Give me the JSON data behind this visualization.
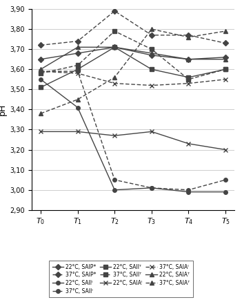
{
  "x_vals": [
    0,
    1,
    2,
    3,
    4,
    5
  ],
  "ylim": [
    2.9,
    3.9
  ],
  "yticks": [
    2.9,
    3.0,
    3.1,
    3.2,
    3.3,
    3.4,
    3.5,
    3.6,
    3.7,
    3.8,
    3.9
  ],
  "ylabel": "pH",
  "series": [
    {
      "label": "22°C, SAIP*",
      "values": [
        3.65,
        3.68,
        3.71,
        3.67,
        3.65,
        3.66
      ],
      "linestyle": "solid",
      "marker": "D",
      "markersize": 4
    },
    {
      "label": "37°C, SAIP*",
      "values": [
        3.72,
        3.74,
        3.89,
        3.77,
        3.77,
        3.73
      ],
      "linestyle": "dashed",
      "marker": "D",
      "markersize": 4
    },
    {
      "label": "22°C, SAIIᵀ",
      "values": [
        3.51,
        3.6,
        3.71,
        3.6,
        3.56,
        3.6
      ],
      "linestyle": "solid",
      "marker": "s",
      "markersize": 4
    },
    {
      "label": "37°C, SAIIᵀ",
      "values": [
        3.58,
        3.62,
        3.79,
        3.7,
        3.55,
        3.6
      ],
      "linestyle": "dashed",
      "marker": "s",
      "markersize": 4
    },
    {
      "label": "22°C, SAIAᵀ",
      "values": [
        3.6,
        3.71,
        3.71,
        3.68,
        3.65,
        3.65
      ],
      "linestyle": "solid",
      "marker": "^",
      "markersize": 4
    },
    {
      "label": "37°C, SAIAᵀ",
      "values": [
        3.38,
        3.45,
        3.56,
        3.8,
        3.76,
        3.79
      ],
      "linestyle": "dashed",
      "marker": "^",
      "markersize": 4
    },
    {
      "label": "22°C, SAIIᴵ",
      "values": [
        3.55,
        3.41,
        3.0,
        3.01,
        2.99,
        2.99
      ],
      "linestyle": "solid",
      "marker": "o",
      "markersize": 4
    },
    {
      "label": "37°C, SAIIᴵ",
      "values": [
        3.59,
        3.59,
        3.05,
        3.01,
        3.0,
        3.05
      ],
      "linestyle": "dashed",
      "marker": "o",
      "markersize": 4
    },
    {
      "label": "22°C, SAIAᴵ",
      "values": [
        3.29,
        3.29,
        3.27,
        3.29,
        3.23,
        3.2
      ],
      "linestyle": "solid",
      "marker": "x",
      "markersize": 5
    },
    {
      "label": "37°C, SAIAᴵ",
      "values": [
        3.59,
        3.58,
        3.53,
        3.52,
        3.53,
        3.55
      ],
      "linestyle": "dashed",
      "marker": "x",
      "markersize": 5
    }
  ],
  "line_color": "#444444",
  "line_width": 1.0,
  "grid_color": "#bbbbbb",
  "grid_lw": 0.5,
  "tick_fontsize": 7,
  "ylabel_fontsize": 9,
  "legend_fontsize": 5.5,
  "fig_width": 3.51,
  "fig_height": 4.34,
  "dpi": 100
}
